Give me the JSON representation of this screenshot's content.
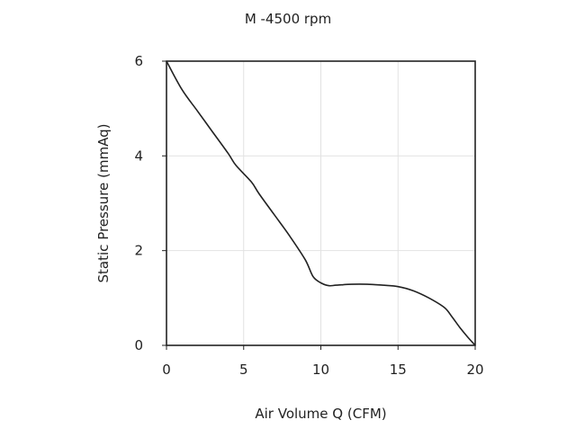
{
  "chart_data": {
    "type": "line",
    "title": "M -4500 rpm",
    "xlabel": "Air Volume Q (CFM)",
    "ylabel": "Static Pressure (mmAq)",
    "xlim": [
      0,
      20
    ],
    "ylim": [
      0,
      6
    ],
    "xticks": [
      0,
      5,
      10,
      15,
      20
    ],
    "yticks": [
      0,
      2,
      4,
      6
    ],
    "grid": true,
    "series": [
      {
        "x": [
          0,
          1,
          2,
          3,
          4,
          4.5,
          5.5,
          6,
          7,
          8,
          9,
          9.5,
          10,
          10.5,
          11,
          12,
          13,
          14,
          15,
          16,
          17,
          18,
          18.5,
          19,
          19.5,
          20
        ],
        "y": [
          6.0,
          5.4,
          4.95,
          4.5,
          4.05,
          3.8,
          3.45,
          3.2,
          2.75,
          2.3,
          1.8,
          1.45,
          1.32,
          1.26,
          1.27,
          1.29,
          1.29,
          1.27,
          1.24,
          1.15,
          1.0,
          0.8,
          0.6,
          0.38,
          0.18,
          0.0
        ]
      }
    ]
  }
}
